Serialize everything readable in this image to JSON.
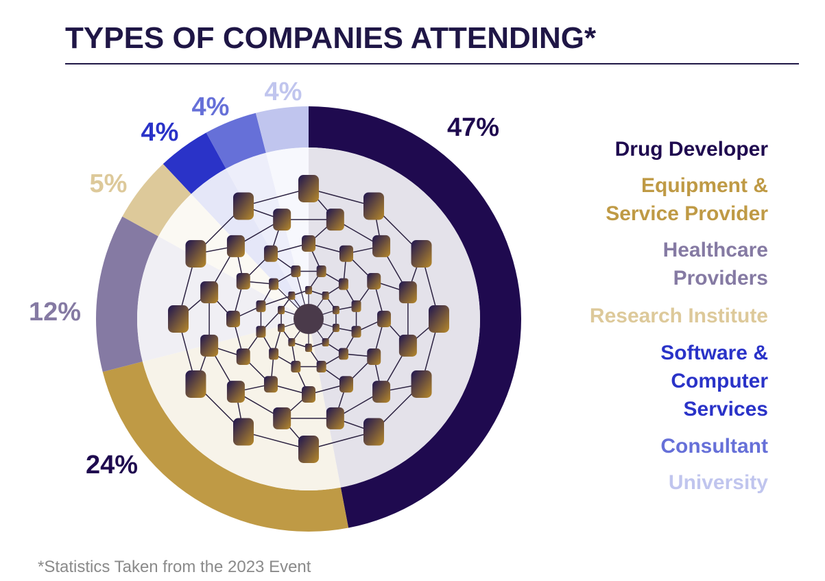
{
  "chart_data": {
    "type": "donut",
    "title": "TYPES OF COMPANIES ATTENDING*",
    "footnote": "*Statistics Taken from the 2023 Event",
    "categories": [
      "Drug Developer",
      "Equipment &\nService Provider",
      "Healthcare\nProviders",
      "Research Institute",
      "Software &\nComputer\nServices",
      "Consultant",
      "University"
    ],
    "values": [
      47,
      24,
      12,
      5,
      4,
      4,
      4
    ],
    "value_labels": [
      "47%",
      "24%",
      "12%",
      "5%",
      "4%",
      "4%",
      "4%"
    ],
    "colors": [
      "#1f0a4f",
      "#bf9a45",
      "#857aa3",
      "#ddc99a",
      "#2a33c8",
      "#6670d8",
      "#c0c5ee"
    ],
    "label_colors": [
      "#1f0a4f",
      "#1f0a4f",
      "#857aa3",
      "#ddc99a",
      "#2a33c8",
      "#6670d8",
      "#c0c5ee"
    ]
  }
}
